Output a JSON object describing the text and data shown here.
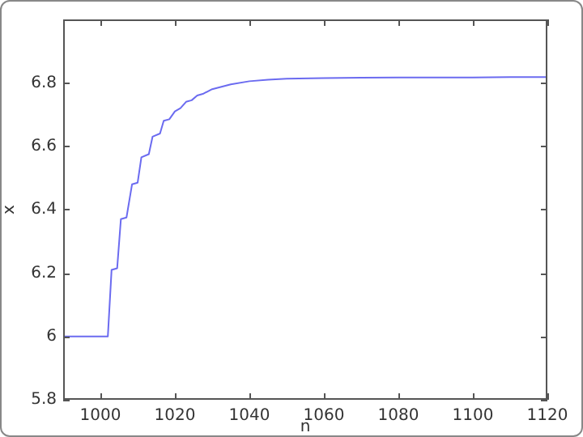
{
  "chart_data": {
    "type": "line",
    "xlabel": "n",
    "ylabel": "x",
    "series": [
      {
        "color": "#6b6bf0",
        "x": [
          990,
          1002,
          1003,
          1004.5,
          1005.5,
          1007,
          1008.5,
          1010,
          1011,
          1013,
          1014,
          1016,
          1017,
          1018.5,
          1020,
          1021.5,
          1023,
          1024.5,
          1026,
          1027.5,
          1030,
          1035,
          1040,
          1045,
          1050,
          1060,
          1070,
          1080,
          1090,
          1100,
          1110,
          1120
        ],
        "values": [
          6,
          6,
          6.21,
          6.215,
          6.37,
          6.375,
          6.48,
          6.485,
          6.565,
          6.575,
          6.63,
          6.64,
          6.68,
          6.685,
          6.71,
          6.72,
          6.74,
          6.745,
          6.76,
          6.765,
          6.78,
          6.795,
          6.805,
          6.81,
          6.813,
          6.815,
          6.816,
          6.817,
          6.817,
          6.817,
          6.818,
          6.818
        ]
      }
    ],
    "xlim": [
      990,
      1120
    ],
    "xticks": [
      1000,
      1020,
      1040,
      1060,
      1080,
      1100,
      1120
    ],
    "ylim": [
      5.8,
      7.0
    ],
    "yticks": [
      5.8,
      6,
      6.2,
      6.4,
      6.6,
      6.8
    ],
    "grid": false,
    "marker": "none",
    "line_style": "solid"
  }
}
